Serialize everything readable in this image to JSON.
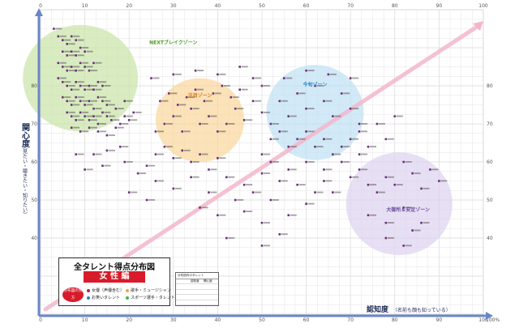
{
  "chart_data": {
    "type": "scatter",
    "title": "全タレント得点分布図",
    "subtitle": "女 性 編",
    "xlabel": "認知度",
    "xlabel_note": "（名前も顔も知っている）",
    "ylabel": "関心度",
    "ylabel_note": "（見たい・聴きたい・知りたい）",
    "xlim": [
      0,
      100
    ],
    "ylim": [
      20,
      100
    ],
    "x_ticks": [
      "0",
      "10",
      "20",
      "30",
      "40",
      "50",
      "60",
      "70",
      "80",
      "90",
      "100"
    ],
    "x_tick_end": "100%",
    "y_ticks": [
      "40",
      "50",
      "60",
      "70",
      "80"
    ],
    "grid": true,
    "zones": [
      {
        "name": "NEXTブレイクゾーン",
        "cx": 9,
        "cy": 82,
        "rx": 13,
        "ry": 14,
        "fill": "#c9e4a6",
        "text": "#4f9b2a"
      },
      {
        "name": "注目ゾーン",
        "cx": 36,
        "cy": 71,
        "rx": 10,
        "ry": 11,
        "fill": "#f9d69a",
        "text": "#d9781a"
      },
      {
        "name": "今旬ゾーン",
        "cx": 62,
        "cy": 73,
        "rx": 11,
        "ry": 12.5,
        "fill": "#bfe0f4",
        "text": "#2c87c8"
      },
      {
        "name": "大御所＆安定ゾーン",
        "cx": 81,
        "cy": 49,
        "rx": 12,
        "ry": 13.5,
        "fill": "#ddd2ef",
        "text": "#6a4f9c"
      }
    ],
    "diagonal": {
      "from": [
        0,
        20
      ],
      "to": [
        100,
        97
      ],
      "color": "#f3b6cb"
    },
    "cluster_color": "#6b2f7a",
    "points": [
      [
        3,
        95
      ],
      [
        4,
        93
      ],
      [
        5,
        92
      ],
      [
        6,
        91
      ],
      [
        7,
        93
      ],
      [
        8,
        92
      ],
      [
        5,
        89
      ],
      [
        6,
        88
      ],
      [
        7,
        89
      ],
      [
        8,
        88
      ],
      [
        9,
        90
      ],
      [
        10,
        89
      ],
      [
        4,
        86
      ],
      [
        5,
        85
      ],
      [
        6,
        84
      ],
      [
        7,
        85
      ],
      [
        8,
        84
      ],
      [
        9,
        86
      ],
      [
        10,
        85
      ],
      [
        11,
        84
      ],
      [
        12,
        86
      ],
      [
        4,
        82
      ],
      [
        5,
        81
      ],
      [
        6,
        80
      ],
      [
        7,
        79
      ],
      [
        8,
        81
      ],
      [
        9,
        80
      ],
      [
        10,
        79
      ],
      [
        11,
        80
      ],
      [
        12,
        79
      ],
      [
        13,
        81
      ],
      [
        14,
        80
      ],
      [
        5,
        77
      ],
      [
        6,
        76
      ],
      [
        7,
        75
      ],
      [
        8,
        77
      ],
      [
        9,
        76
      ],
      [
        10,
        75
      ],
      [
        11,
        76
      ],
      [
        12,
        74
      ],
      [
        13,
        77
      ],
      [
        14,
        76
      ],
      [
        15,
        75
      ],
      [
        6,
        73
      ],
      [
        7,
        72
      ],
      [
        8,
        71
      ],
      [
        9,
        73
      ],
      [
        10,
        72
      ],
      [
        11,
        71
      ],
      [
        12,
        72
      ],
      [
        13,
        70
      ],
      [
        14,
        73
      ],
      [
        15,
        72
      ],
      [
        16,
        71
      ],
      [
        7,
        69
      ],
      [
        9,
        68
      ],
      [
        11,
        69
      ],
      [
        13,
        68
      ],
      [
        15,
        67
      ],
      [
        17,
        69
      ],
      [
        18,
        70
      ],
      [
        19,
        72
      ],
      [
        20,
        71
      ],
      [
        21,
        73
      ],
      [
        17,
        74
      ],
      [
        19,
        76
      ],
      [
        8,
        62
      ],
      [
        12,
        62
      ],
      [
        15,
        63
      ],
      [
        18,
        64
      ],
      [
        10,
        58
      ],
      [
        14,
        59
      ],
      [
        19,
        60
      ],
      [
        22,
        57
      ],
      [
        24,
        59
      ],
      [
        26,
        62
      ],
      [
        28,
        64
      ],
      [
        30,
        61
      ],
      [
        32,
        63
      ],
      [
        34,
        60
      ],
      [
        36,
        62
      ],
      [
        38,
        58
      ],
      [
        40,
        61
      ],
      [
        26,
        68
      ],
      [
        28,
        70
      ],
      [
        30,
        72
      ],
      [
        32,
        68
      ],
      [
        34,
        74
      ],
      [
        36,
        70
      ],
      [
        38,
        72
      ],
      [
        40,
        68
      ],
      [
        42,
        70
      ],
      [
        44,
        74
      ],
      [
        46,
        71
      ],
      [
        27,
        76
      ],
      [
        29,
        78
      ],
      [
        31,
        75
      ],
      [
        33,
        77
      ],
      [
        35,
        79
      ],
      [
        37,
        76
      ],
      [
        39,
        78
      ],
      [
        41,
        80
      ],
      [
        43,
        77
      ],
      [
        45,
        79
      ],
      [
        25,
        82
      ],
      [
        30,
        83
      ],
      [
        35,
        84
      ],
      [
        40,
        83
      ],
      [
        45,
        85
      ],
      [
        48,
        82
      ],
      [
        50,
        80
      ],
      [
        48,
        76
      ],
      [
        50,
        73
      ],
      [
        52,
        70
      ],
      [
        54,
        76
      ],
      [
        56,
        72
      ],
      [
        58,
        78
      ],
      [
        60,
        74
      ],
      [
        62,
        80
      ],
      [
        64,
        76
      ],
      [
        66,
        72
      ],
      [
        68,
        78
      ],
      [
        70,
        74
      ],
      [
        72,
        70
      ],
      [
        55,
        82
      ],
      [
        60,
        84
      ],
      [
        65,
        83
      ],
      [
        70,
        82
      ],
      [
        52,
        66
      ],
      [
        54,
        68
      ],
      [
        56,
        64
      ],
      [
        58,
        66
      ],
      [
        60,
        68
      ],
      [
        62,
        64
      ],
      [
        64,
        66
      ],
      [
        66,
        62
      ],
      [
        68,
        64
      ],
      [
        70,
        66
      ],
      [
        72,
        68
      ],
      [
        74,
        64
      ],
      [
        76,
        70
      ],
      [
        78,
        66
      ],
      [
        80,
        72
      ],
      [
        50,
        62
      ],
      [
        52,
        60
      ],
      [
        56,
        58
      ],
      [
        60,
        60
      ],
      [
        64,
        58
      ],
      [
        68,
        60
      ],
      [
        72,
        62
      ],
      [
        42,
        56
      ],
      [
        46,
        54
      ],
      [
        50,
        57
      ],
      [
        54,
        55
      ],
      [
        58,
        54
      ],
      [
        62,
        52
      ],
      [
        38,
        52
      ],
      [
        44,
        50
      ],
      [
        48,
        52
      ],
      [
        52,
        50
      ],
      [
        36,
        48
      ],
      [
        40,
        46
      ],
      [
        46,
        47
      ],
      [
        50,
        44
      ],
      [
        26,
        55
      ],
      [
        30,
        53
      ],
      [
        34,
        56
      ],
      [
        20,
        52
      ],
      [
        24,
        50
      ],
      [
        42,
        40
      ],
      [
        50,
        38
      ],
      [
        54,
        41
      ],
      [
        56,
        46
      ],
      [
        60,
        49
      ],
      [
        64,
        55
      ],
      [
        66,
        52
      ],
      [
        70,
        56
      ],
      [
        72,
        58
      ],
      [
        74,
        54
      ],
      [
        76,
        52
      ],
      [
        78,
        56
      ],
      [
        80,
        54
      ],
      [
        82,
        60
      ],
      [
        84,
        57
      ],
      [
        86,
        53
      ],
      [
        88,
        58
      ],
      [
        90,
        55
      ],
      [
        74,
        46
      ],
      [
        78,
        44
      ],
      [
        82,
        48
      ],
      [
        86,
        44
      ],
      [
        78,
        40
      ],
      [
        82,
        38
      ],
      [
        84,
        42
      ]
    ]
  },
  "legend": {
    "title": "全タレント得点分布図",
    "subtitle": "女 性 編",
    "badge": "分布図の見方",
    "items": [
      {
        "label": "女優（声優含む）",
        "color": "#c2185b"
      },
      {
        "label": "歌手・ミュージシャン",
        "color": "#f2a541"
      },
      {
        "label": "お笑いタレント",
        "color": "#2e7fc7"
      },
      {
        "label": "スポーツ選手・タレントなど",
        "color": "#4caf50"
      }
    ]
  },
  "table": {
    "caption": "分布図内のタレント",
    "header": [
      "",
      "認知度",
      "関心度"
    ],
    "rows": [
      [
        "",
        "",
        ""
      ],
      [
        "",
        "",
        ""
      ],
      [
        "",
        "",
        ""
      ],
      [
        "",
        "",
        ""
      ]
    ]
  },
  "colors": {
    "grid": "#d9d9d9",
    "plot_bg": "#ffffff",
    "axis_arrow": "#6a86c7",
    "axis_text": "#1a2a55"
  }
}
